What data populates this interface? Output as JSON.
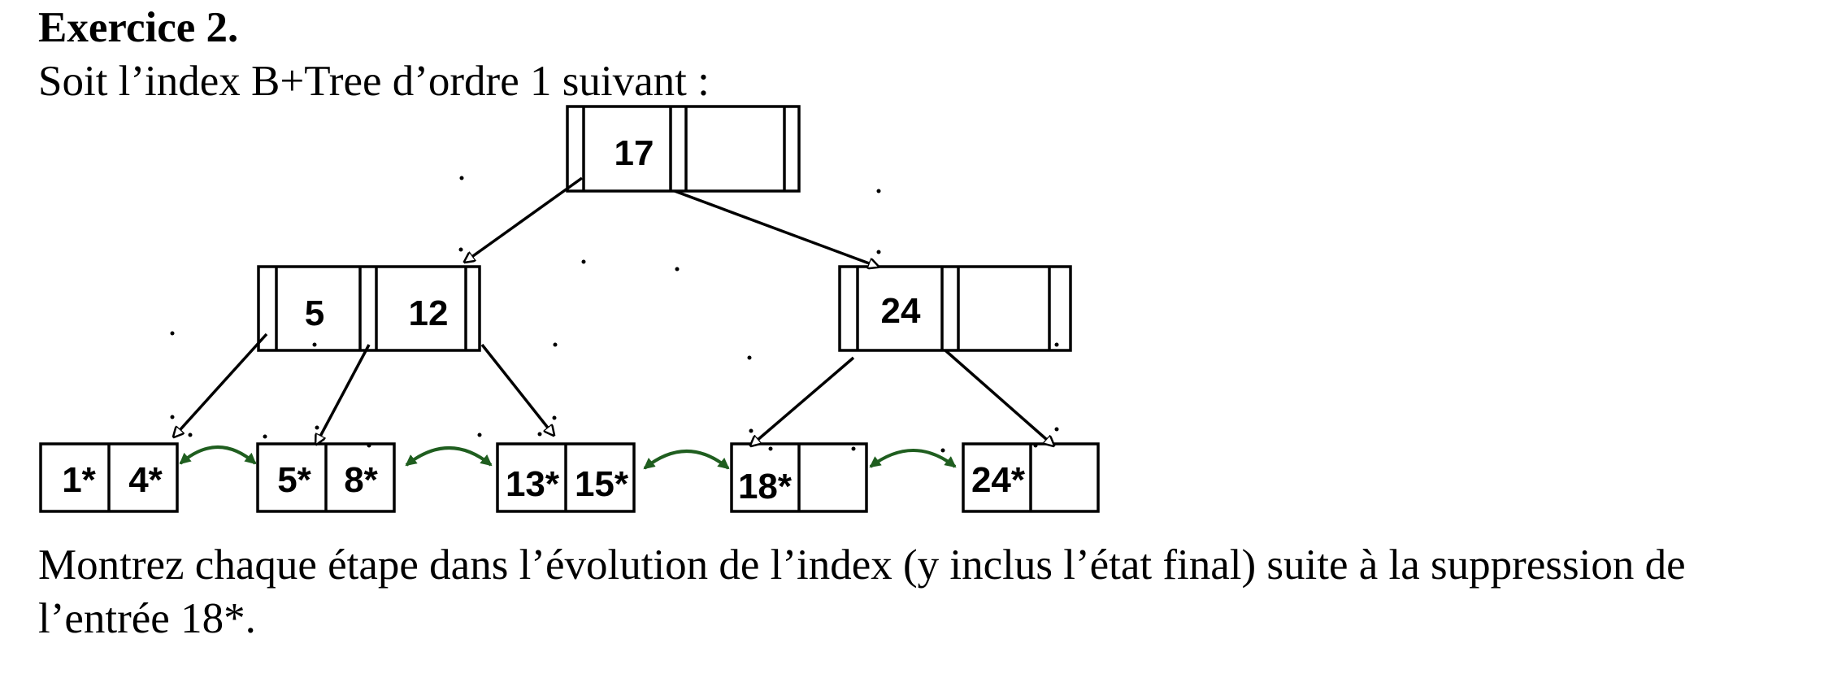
{
  "exercise": {
    "title": "Exercice 2.",
    "intro": "Soit l’index B+Tree d’ordre 1 suivant :",
    "question": "Montrez chaque étape dans l’évolution de l’index (y inclus l’état final) suite à la suppression de l’entrée 18*."
  },
  "tree": {
    "order": 1,
    "root": {
      "keys": [
        "17",
        ""
      ]
    },
    "internal_left": {
      "keys": [
        "5",
        "12"
      ]
    },
    "internal_right": {
      "keys": [
        "24",
        ""
      ]
    },
    "leaves": [
      {
        "entries": [
          "1*",
          "4*"
        ]
      },
      {
        "entries": [
          "5*",
          "8*"
        ]
      },
      {
        "entries": [
          "13*",
          "15*"
        ]
      },
      {
        "entries": [
          "18*",
          ""
        ]
      },
      {
        "entries": [
          "24*",
          ""
        ]
      }
    ],
    "colors": {
      "stroke": "#000000",
      "sibling_link": "#1f5e1f"
    }
  }
}
